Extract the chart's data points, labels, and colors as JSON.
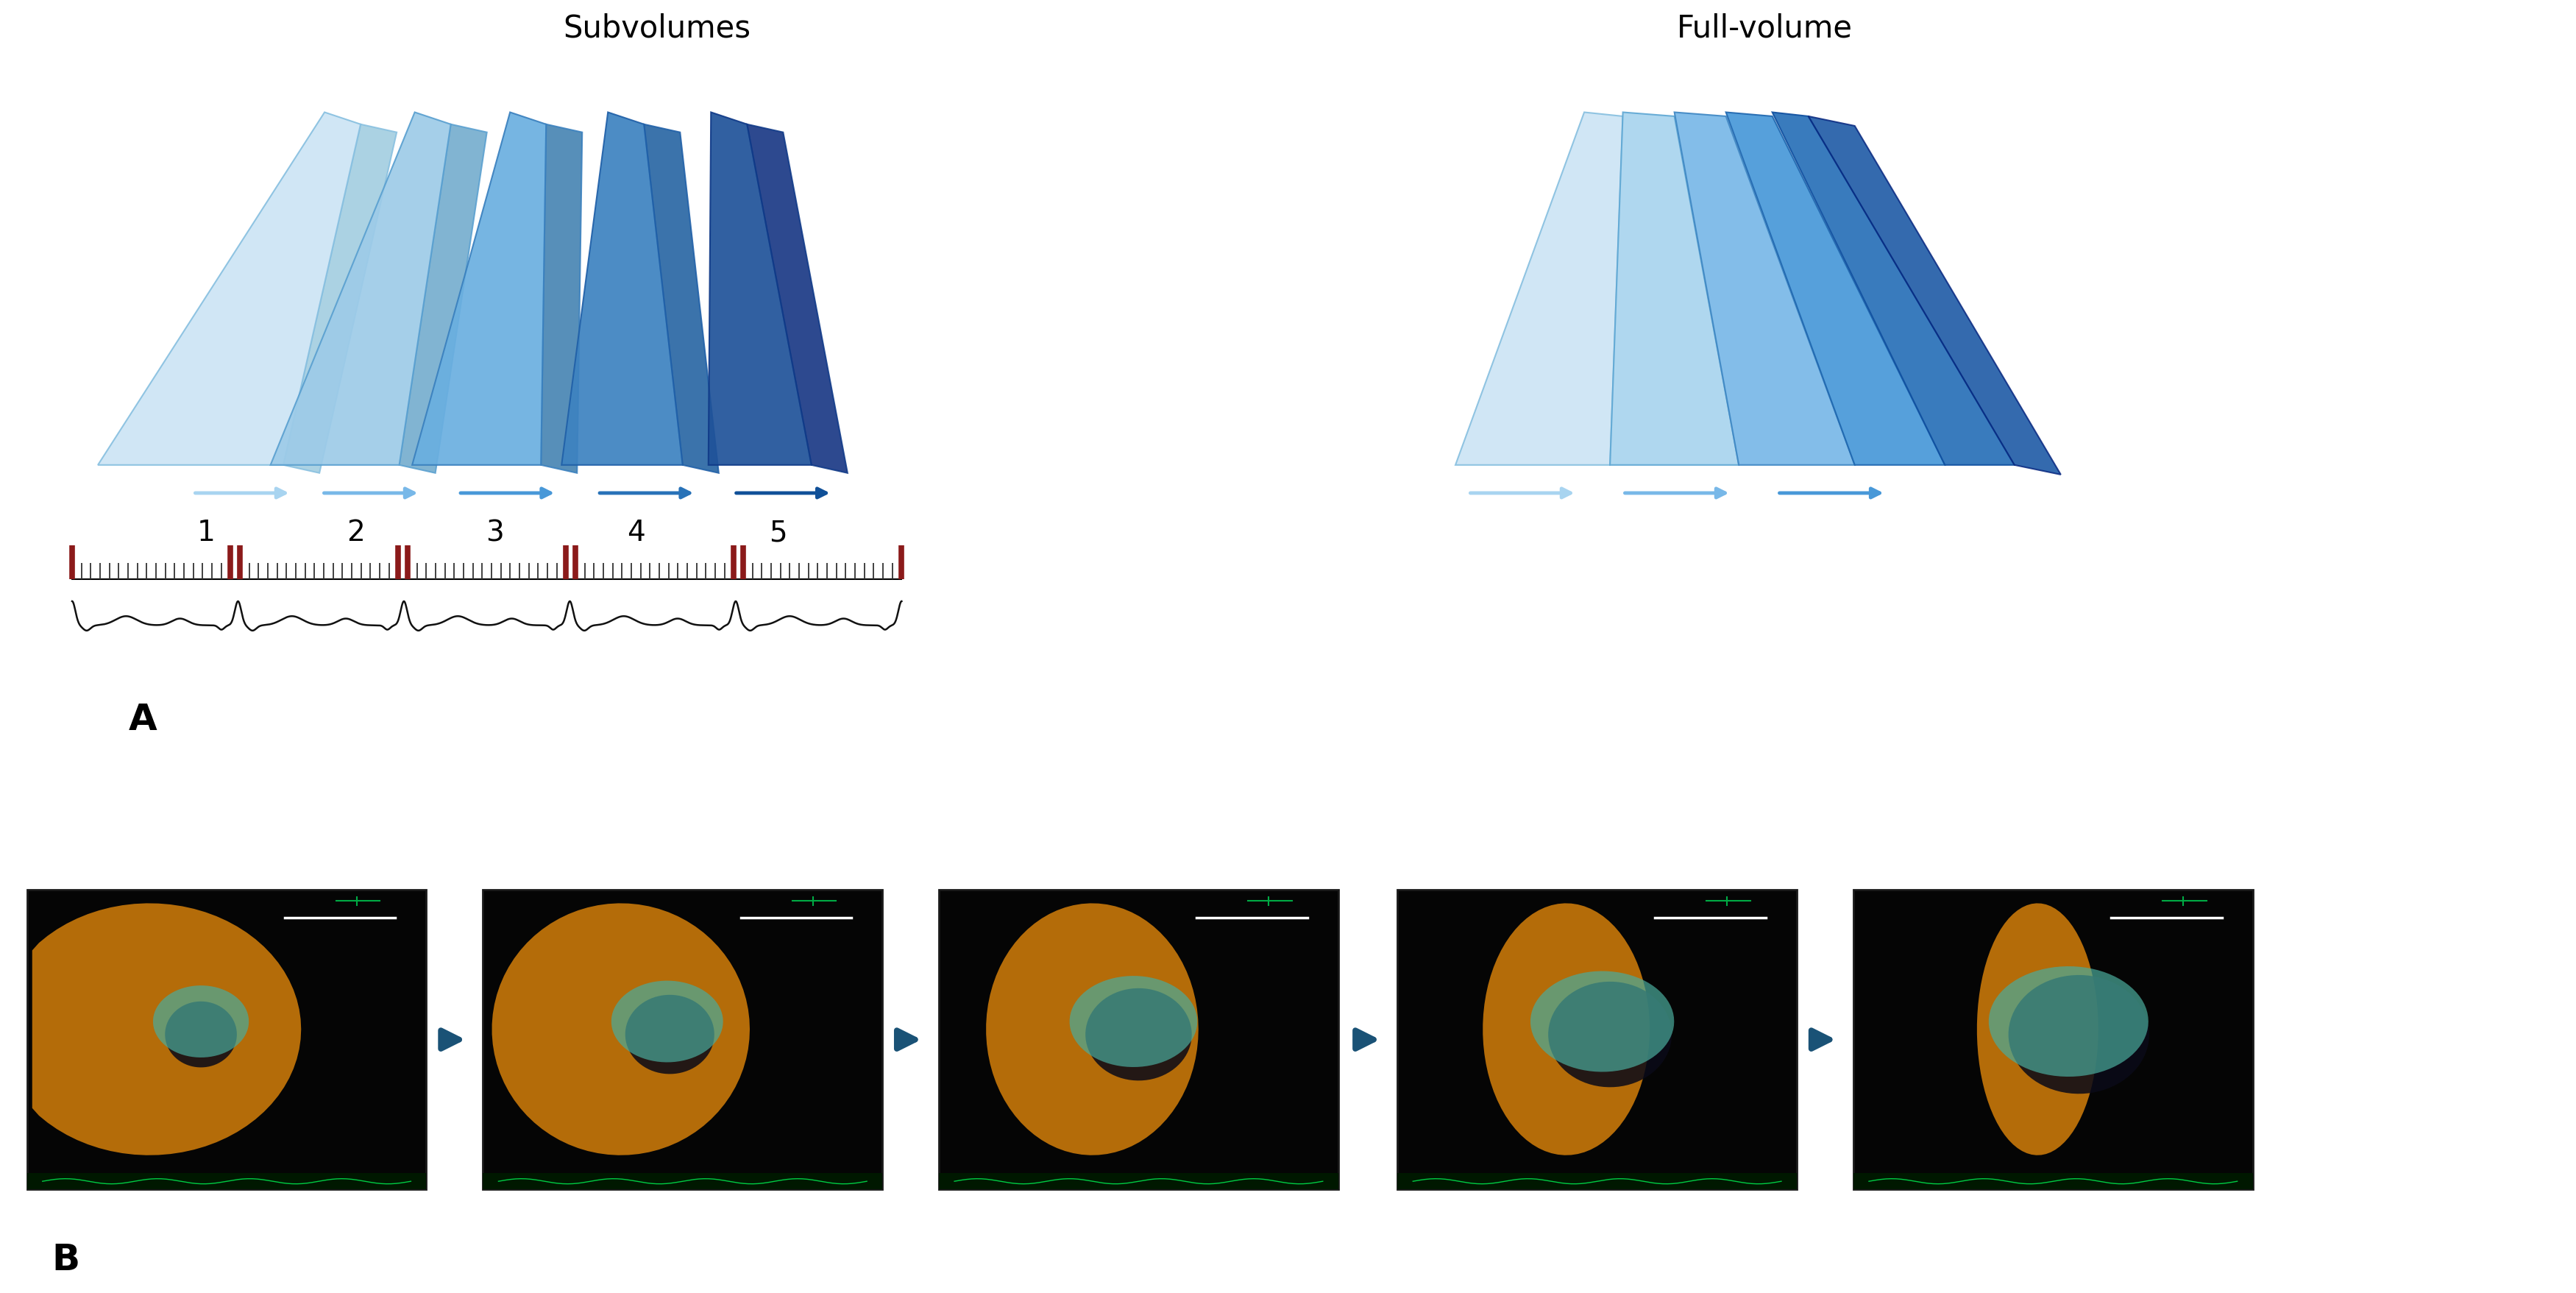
{
  "background_color": "#ffffff",
  "title_subvolumes": "Subvolumes",
  "title_fullvolume": "Full-volume",
  "label_A": "A",
  "label_B": "B",
  "beat_numbers": [
    "1",
    "2",
    "3",
    "4",
    "5"
  ],
  "sv_face_colors": [
    "#cce4f5",
    "#9dcbe8",
    "#6aafe0",
    "#3d82c0",
    "#1f5299"
  ],
  "sv_edge_colors": [
    "#88c0e0",
    "#5aa0d0",
    "#3a80be",
    "#2060a8",
    "#103a88"
  ],
  "sv_side_colors": [
    "#a0cce0",
    "#70aacc",
    "#4080b0",
    "#2060a0",
    "#103080"
  ],
  "fv_panel_faces": [
    "#cce4f5",
    "#aad0ea",
    "#80b8e0",
    "#5298d0",
    "#2e70b8",
    "#1a50a0",
    "#0e3888"
  ],
  "fv_panel_edges": [
    "#88c0e0",
    "#60a8d4",
    "#4088c0",
    "#2870b0",
    "#1858a0",
    "#0c4090",
    "#082880"
  ],
  "arrow_colors_sub": [
    "#a8d4f0",
    "#78b8e8",
    "#4898d8",
    "#2872b8",
    "#105098"
  ],
  "arrow_colors_fvol": [
    "#a8d4f0",
    "#78b8e8",
    "#4898d8"
  ],
  "ecg_color": "#111111",
  "rwave_color": "#8b1a1a",
  "tick_color": "#333333",
  "echo_arrow_color": "#1a5276",
  "title_fontsize": 30,
  "num_fontsize": 28,
  "label_fontsize": 36
}
